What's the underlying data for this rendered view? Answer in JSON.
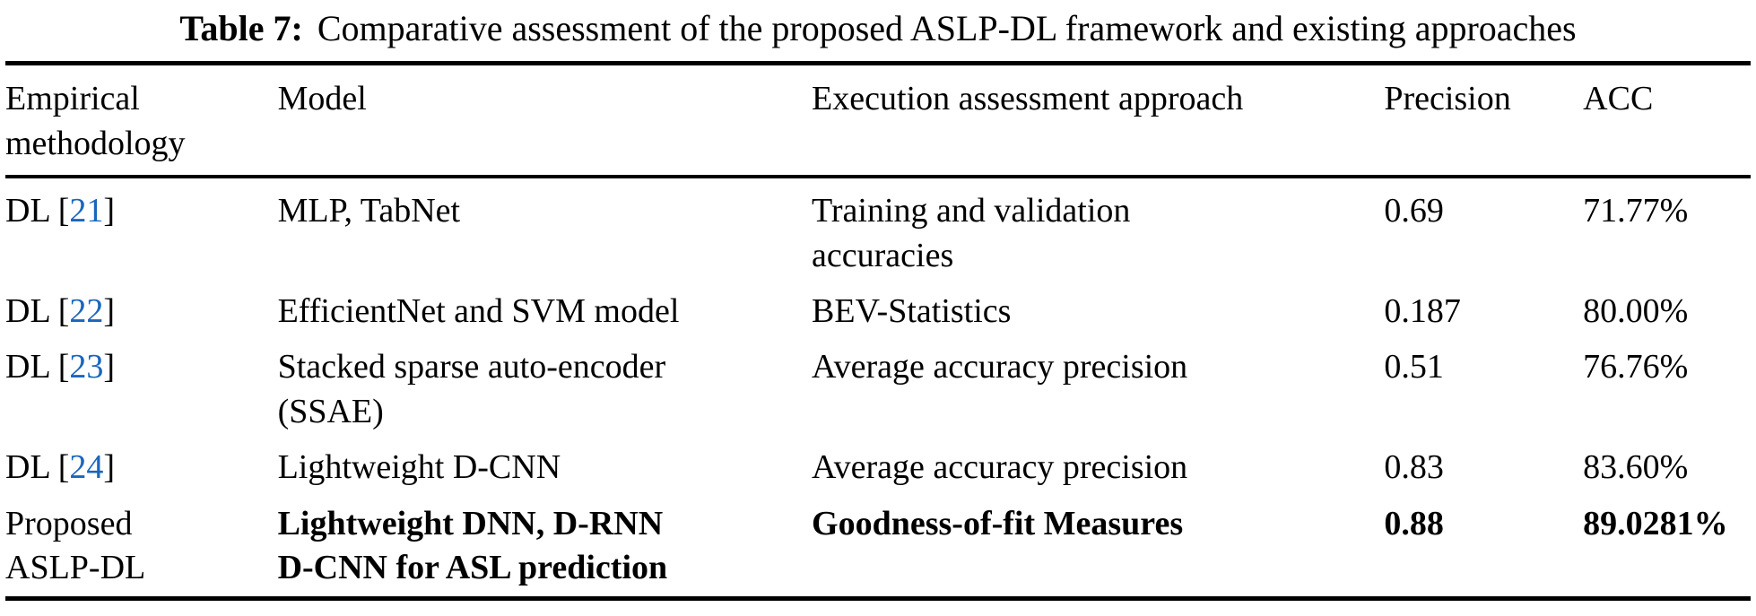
{
  "caption": {
    "label": "Table 7:",
    "text": "Comparative assessment of the proposed ASLP-DL framework and existing approaches"
  },
  "header": {
    "methodology": "Empirical methodology",
    "model": "Model",
    "approach": "Execution assessment approach",
    "precision": "Precision",
    "acc": "ACC"
  },
  "rows": [
    {
      "m_pre": "DL [",
      "cite": "21",
      "m_post": "]",
      "model": "MLP, TabNet",
      "approach": "Training and validation\naccuracies",
      "precision": "0.69",
      "acc": "71.77%"
    },
    {
      "m_pre": "DL [",
      "cite": "22",
      "m_post": "]",
      "model": "EfficientNet and SVM model",
      "approach": "BEV-Statistics",
      "precision": "0.187",
      "acc": "80.00%"
    },
    {
      "m_pre": "DL [",
      "cite": "23",
      "m_post": "]",
      "model": "Stacked sparse auto-encoder\n(SSAE)",
      "approach": "Average accuracy precision",
      "precision": "0.51",
      "acc": "76.76%"
    },
    {
      "m_pre": "DL [",
      "cite": "24",
      "m_post": "]",
      "model": "Lightweight D-CNN",
      "approach": "Average accuracy precision",
      "precision": "0.83",
      "acc": "83.60%"
    },
    {
      "m_pre": "Proposed\nASLP-DL",
      "cite": "",
      "m_post": "",
      "model": "Lightweight DNN, D-RNN\nD-CNN for ASL prediction",
      "approach": "Goodness-of-fit Measures",
      "precision": "0.88",
      "acc": "89.0281%"
    }
  ],
  "colors": {
    "citation_link": "#1a66bd",
    "rule": "#000000",
    "text": "#000000",
    "background": "#ffffff"
  }
}
